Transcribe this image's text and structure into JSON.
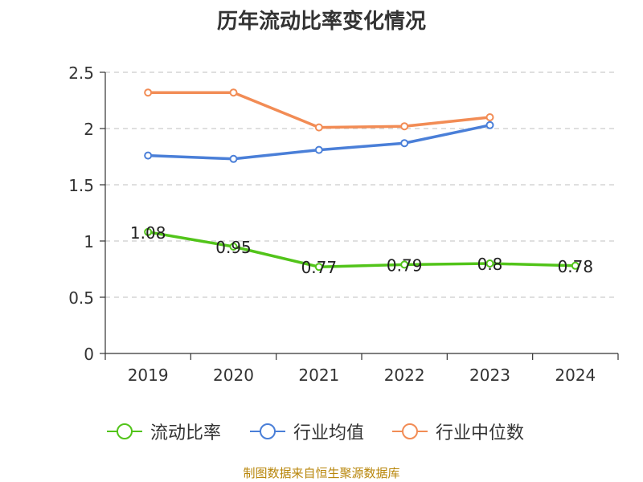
{
  "chart_data": {
    "type": "line",
    "title": "历年流动比率变化情况",
    "categories": [
      "2019",
      "2020",
      "2021",
      "2022",
      "2023",
      "2024"
    ],
    "ylim": [
      0,
      2.5
    ],
    "yticks": [
      "0",
      "0.5",
      "1",
      "1.5",
      "2",
      "2.5"
    ],
    "grid": true,
    "legend_position": "bottom",
    "series": [
      {
        "name": "流动比率",
        "color": "#52c41a",
        "values": [
          1.08,
          0.95,
          0.77,
          0.79,
          0.8,
          0.78
        ],
        "data_labels": [
          "1.08",
          "0.95",
          "0.77",
          "0.79",
          "0.8",
          "0.78"
        ]
      },
      {
        "name": "行业均值",
        "color": "#4a7fd8",
        "values": [
          1.76,
          1.73,
          1.81,
          1.87,
          2.03,
          null
        ]
      },
      {
        "name": "行业中位数",
        "color": "#f28c55",
        "values": [
          2.32,
          2.32,
          2.01,
          2.02,
          2.1,
          null
        ]
      }
    ]
  },
  "source": "制图数据来自恒生聚源数据库"
}
